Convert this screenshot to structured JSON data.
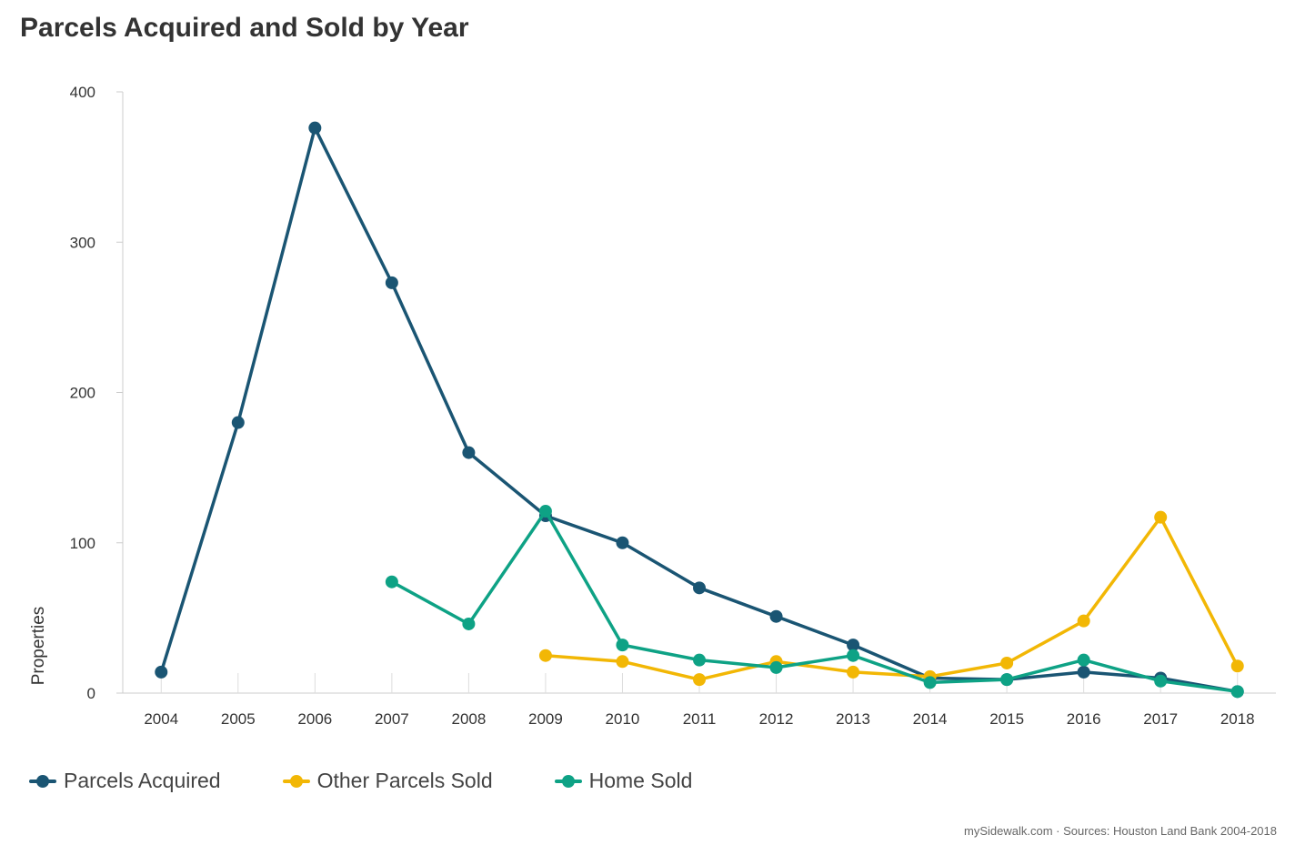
{
  "title": "Parcels Acquired and Sold by Year",
  "footer": "mySidewalk.com · Sources: Houston Land Bank 2004-2018",
  "chart_data": {
    "type": "line",
    "title": "Parcels Acquired and Sold by Year",
    "xlabel": "",
    "ylabel": "Properties",
    "categories": [
      "2004",
      "2005",
      "2006",
      "2007",
      "2008",
      "2009",
      "2010",
      "2011",
      "2012",
      "2013",
      "2014",
      "2015",
      "2016",
      "2017",
      "2018"
    ],
    "ylim": [
      0,
      400
    ],
    "yticks": [
      0,
      100,
      200,
      300,
      400
    ],
    "grid": false,
    "legend_position": "bottom-left",
    "series": [
      {
        "name": "Parcels Acquired",
        "color": "#1a5573",
        "values": [
          14,
          180,
          376,
          273,
          160,
          118,
          100,
          70,
          51,
          32,
          10,
          9,
          14,
          10,
          1
        ]
      },
      {
        "name": "Other Parcels Sold",
        "color": "#f2b705",
        "values": [
          null,
          null,
          null,
          null,
          null,
          25,
          21,
          9,
          21,
          14,
          11,
          20,
          48,
          117,
          18
        ]
      },
      {
        "name": "Home Sold",
        "color": "#0ea285",
        "values": [
          null,
          null,
          null,
          74,
          46,
          121,
          32,
          22,
          17,
          25,
          7,
          9,
          22,
          8,
          1
        ]
      }
    ]
  }
}
